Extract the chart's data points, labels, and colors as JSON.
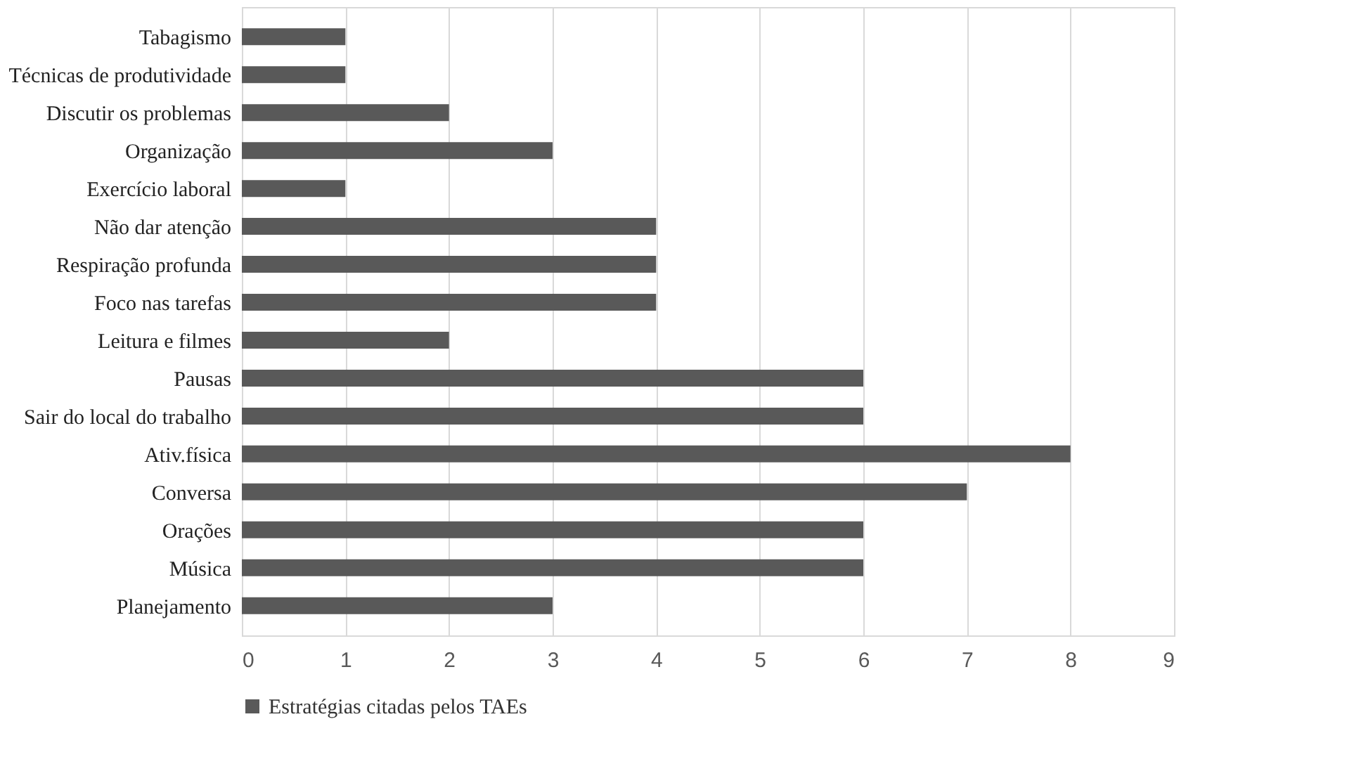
{
  "chart_data": {
    "type": "bar",
    "orientation": "horizontal",
    "categories": [
      "Tabagismo",
      "Técnicas de produtividade",
      "Discutir os problemas",
      "Organização",
      "Exercício laboral",
      "Não dar atenção",
      "Respiração profunda",
      "Foco nas tarefas",
      "Leitura e filmes",
      "Pausas",
      "Sair do local do trabalho",
      "Ativ.física",
      "Conversa",
      "Orações",
      "Música",
      "Planejamento"
    ],
    "series": [
      {
        "name": "Estratégias citadas pelos TAEs",
        "color": "#595959",
        "values": [
          1,
          1,
          2,
          3,
          1,
          4,
          4,
          4,
          2,
          6,
          6,
          8,
          7,
          6,
          6,
          3
        ]
      }
    ],
    "xlim": [
      0,
      9
    ],
    "xticks": [
      0,
      1,
      2,
      3,
      4,
      5,
      6,
      7,
      8,
      9
    ],
    "grid": "x",
    "legend": "bottom"
  }
}
